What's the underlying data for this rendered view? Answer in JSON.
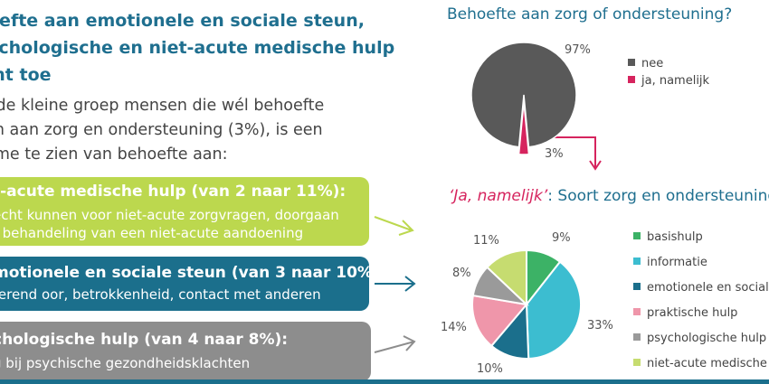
{
  "heading": {
    "line1": "oefte aan emotionele en sociale steun,",
    "line2": "ychologische en niet-acute medische hulp",
    "line3": "mt toe"
  },
  "intro": {
    "line1": "er de kleine groep mensen die wél behoefte",
    "line2": "ben aan zorg en ondersteuning (3%), is een",
    "line3": "name te zien van behoefte aan:"
  },
  "boxes": {
    "box1": {
      "title": "t-acute medische hulp (van 2 naar 11%):",
      "line1": "echt kunnen voor niet-acute zorgvragen, doorgaan",
      "line2": "t behandeling van een niet-acute aandoening",
      "color": "#bcd84e"
    },
    "box2": {
      "title": "motionele en sociale steun (van 3 naar 10%):",
      "line1": "terend oor, betrokkenheid, contact met anderen",
      "color": "#1b6f8c"
    },
    "box3": {
      "title": "chologische hulp (van 4 naar 8%):",
      "line1": "g bij psychische gezondheidsklachten",
      "color": "#8d8d8d"
    }
  },
  "chart_data": [
    {
      "type": "pie",
      "title": "Behoefte aan zorg of ondersteuning?",
      "categories": [
        "nee",
        "ja, namelijk"
      ],
      "values": [
        97,
        3
      ],
      "labels": [
        "97%",
        "3%"
      ],
      "colors": [
        "#595959",
        "#d6245e"
      ],
      "legend": "right"
    },
    {
      "type": "pie",
      "title_em": "‘Ja, namelijk’",
      "title_rest": ": Soort zorg en ondersteuning",
      "categories": [
        "basishulp",
        "informatie",
        "emotionele en sociale",
        "praktische hulp",
        "psychologische hulp",
        "niet-acute medische h"
      ],
      "values": [
        9,
        33,
        10,
        14,
        8,
        11
      ],
      "labels": [
        "9%",
        "33%",
        "10%",
        "14%",
        "8%",
        "11%"
      ],
      "colors": [
        "#3cb266",
        "#3cbdd0",
        "#1b6f8c",
        "#ef96aa",
        "#9a9a9a",
        "#c6dc70"
      ],
      "legend": "right"
    }
  ]
}
